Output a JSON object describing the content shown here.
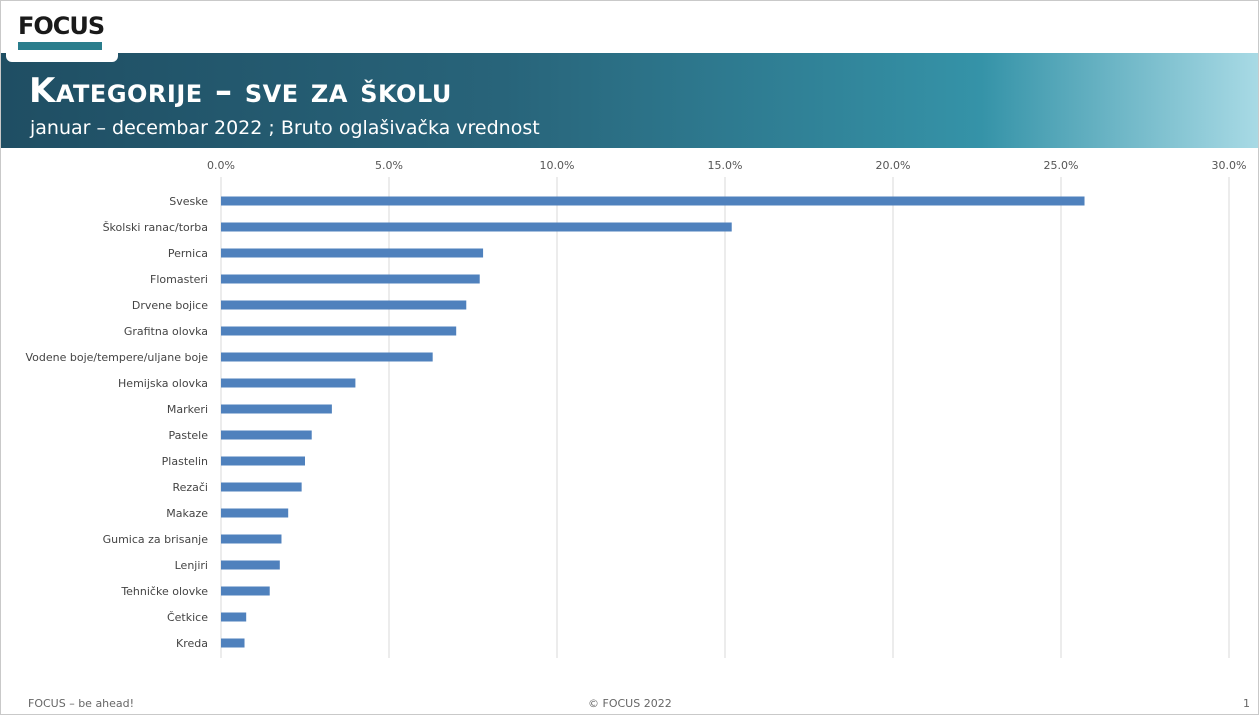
{
  "logo": {
    "text": "FOCUS"
  },
  "header": {
    "title": "Kategorije – sve za školu",
    "subtitle": "januar – decembar 2022 ; Bruto oglašivačka vrednost"
  },
  "colors": {
    "bar": "#4f81bd",
    "banner_start": "#1f4e63",
    "banner_end": "#a8dae5",
    "grid": "#d9d9d9"
  },
  "chart_data": {
    "type": "bar",
    "orientation": "horizontal",
    "categories": [
      "Sveske",
      "Školski ranac/torba",
      "Pernica",
      "Flomasteri",
      "Drvene bojice",
      "Grafitna olovka",
      "Vodene boje/tempere/uljane boje",
      "Hemijska olovka",
      "Markeri",
      "Pastele",
      "Plastelin",
      "Rezači",
      "Makaze",
      "Gumica za brisanje",
      "Lenjiri",
      "Tehničke olovke",
      "Četkice",
      "Kreda"
    ],
    "values": [
      25.7,
      15.2,
      7.8,
      7.7,
      7.3,
      7.0,
      6.3,
      4.0,
      3.3,
      2.7,
      2.5,
      2.4,
      2.0,
      1.8,
      1.75,
      1.45,
      0.75,
      0.7
    ],
    "xlim": [
      0,
      30
    ],
    "ticks": [
      "0.0%",
      "5.0%",
      "10.0%",
      "15.0%",
      "20.0%",
      "25.0%",
      "30.0%"
    ],
    "tick_values": [
      0,
      5,
      10,
      15,
      20,
      25,
      30
    ],
    "axis_position": "top",
    "grid": true,
    "unit": "%"
  },
  "footer": {
    "left": "FOCUS – be ahead!",
    "center": "© FOCUS 2022",
    "page": "1"
  }
}
